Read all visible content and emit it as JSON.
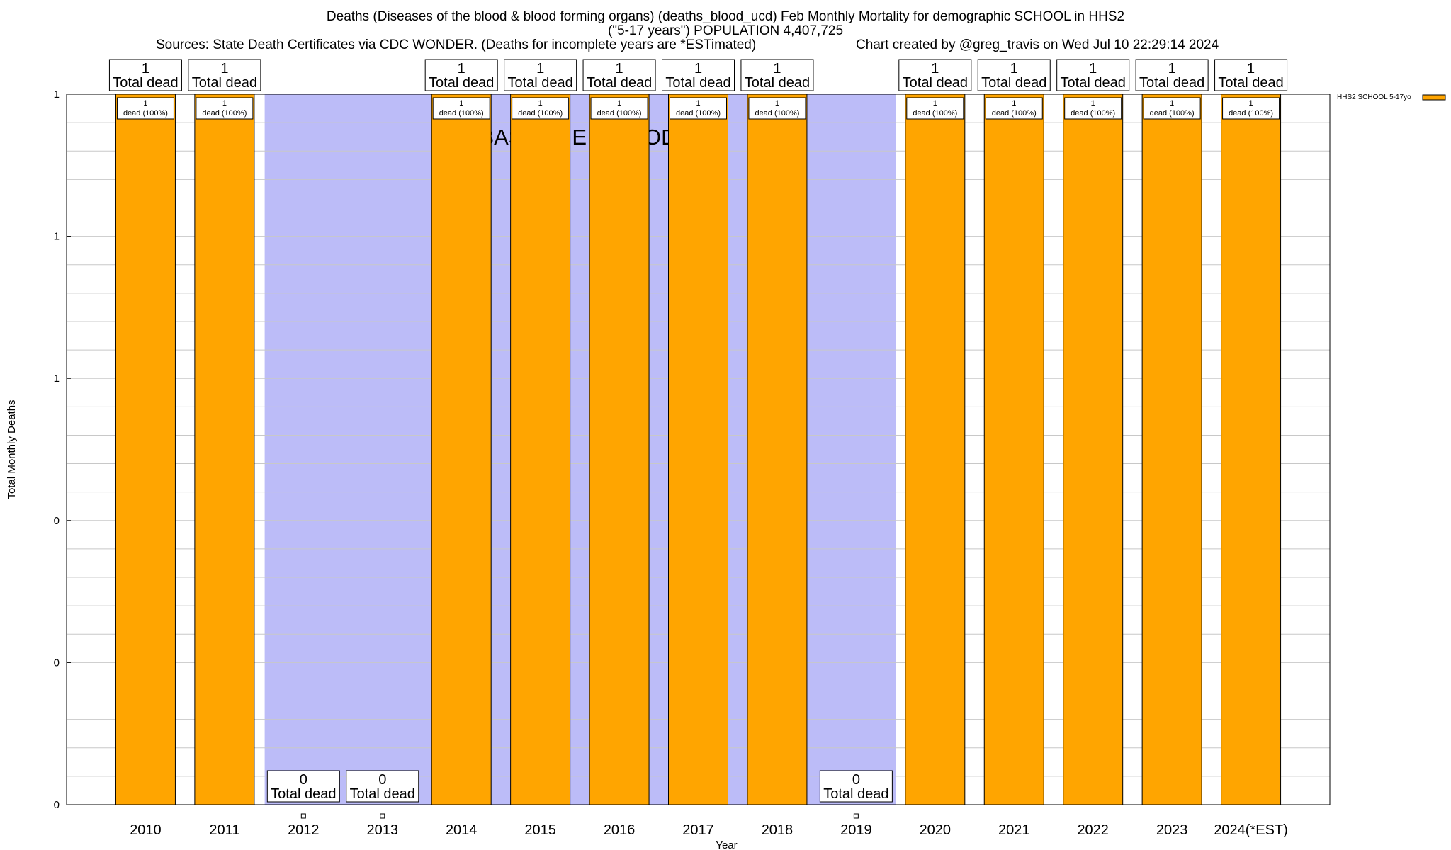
{
  "chart_data": {
    "type": "bar",
    "title": "Deaths (Diseases of the blood & blood forming organs) (deaths_blood_ucd) Feb Monthly Mortality for demographic SCHOOL in HHS2",
    "subtitle": "(\"5-17 years\") POPULATION 4,407,725",
    "sources": "Sources: State Death Certificates via CDC WONDER. (Deaths for incomplete years are *ESTimated)",
    "credit": "Chart created by @greg_travis on Wed Jul 10 22:29:14 2024",
    "xlabel": "Year",
    "ylabel": "Total Monthly Deaths",
    "ylim": [
      0,
      1
    ],
    "ytick_labels": [
      "0",
      "0",
      "0",
      "1",
      "1",
      "1"
    ],
    "baseline_label": "BASELINE PERIOD",
    "baseline_range": [
      "2012",
      "2019"
    ],
    "categories": [
      "2010",
      "2011",
      "2012",
      "2013",
      "2014",
      "2015",
      "2016",
      "2017",
      "2018",
      "2019",
      "2020",
      "2021",
      "2022",
      "2023",
      "2024(*EST)"
    ],
    "series": [
      {
        "name": "HHS2 SCHOOL 5-17yo",
        "color": "#FFA500",
        "values": [
          1,
          1,
          0,
          0,
          1,
          1,
          1,
          1,
          1,
          0,
          1,
          1,
          1,
          1,
          1
        ]
      }
    ],
    "total_label_suffix": "Total dead",
    "pct_labels": [
      "1\ndead (100%)",
      "1\ndead (100%)",
      "",
      "",
      "1\ndead (100%)",
      "1\ndead (100%)",
      "1\ndead (100%)",
      "1\ndead (100%)",
      "1\ndead (100%)",
      "",
      "1\ndead (100%)",
      "1\ndead (100%)",
      "1\ndead (100%)",
      "1\ndead (100%)",
      "1\ndead (100%)"
    ],
    "colors": {
      "bar": "#FFA500",
      "baseline": "#BCBCF8",
      "grid": "#C8C8C8"
    }
  }
}
